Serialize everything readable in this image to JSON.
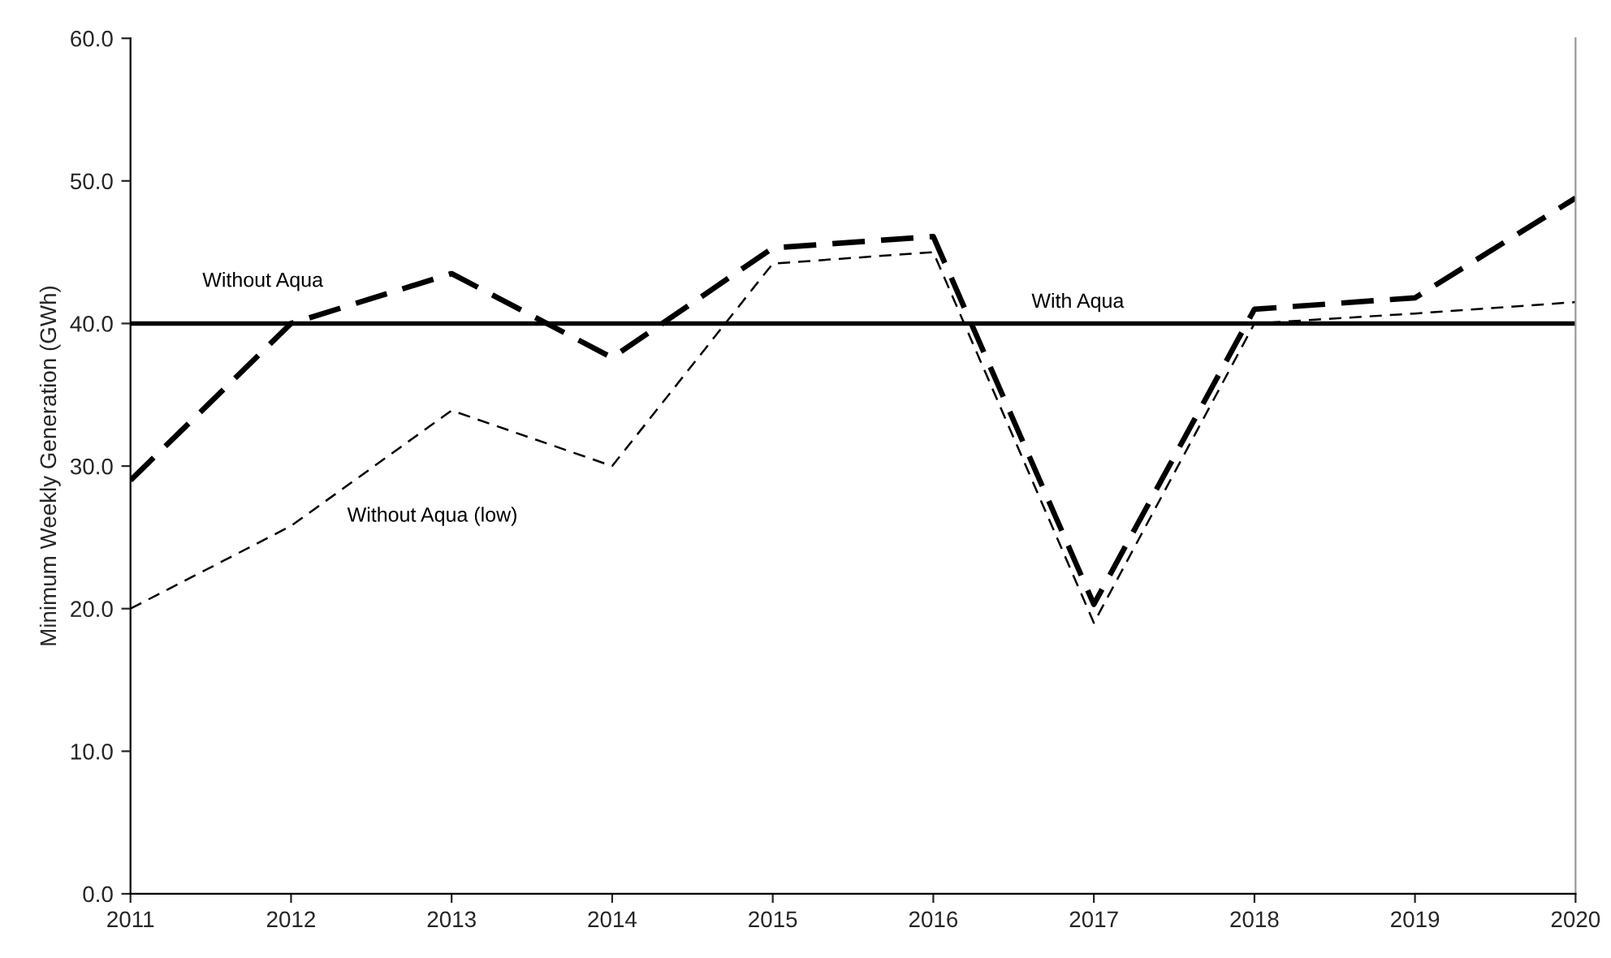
{
  "chart_data": {
    "type": "line",
    "ylabel": "Minimum Weekly Generation (GWh)",
    "x": [
      2011,
      2012,
      2013,
      2014,
      2015,
      2016,
      2017,
      2018,
      2019,
      2020
    ],
    "series": [
      {
        "name": "Without Aqua",
        "color": "#000000",
        "line_style": "dashed",
        "values": [
          29.0,
          40.0,
          43.5,
          37.6,
          45.3,
          46.1,
          20.3,
          41.0,
          41.8,
          48.8
        ]
      },
      {
        "name": "Without Aqua (low)",
        "color": "#000000",
        "line_style": "dashed",
        "values": [
          20.0,
          25.8,
          33.9,
          30.0,
          44.2,
          45.0,
          19.0,
          40.0,
          40.7,
          41.5
        ]
      },
      {
        "name": "With Aqua",
        "color": "#000000",
        "line_style": "solid",
        "values": [
          40.0,
          40.0,
          40.0,
          40.0,
          40.0,
          40.0,
          40.0,
          40.0,
          40.0,
          40.0
        ]
      }
    ],
    "xlim": [
      2011,
      2020
    ],
    "xticks": [
      2011,
      2012,
      2013,
      2014,
      2015,
      2016,
      2017,
      2018,
      2019,
      2020
    ],
    "ylim": [
      0,
      60
    ],
    "yticks": [
      {
        "value": 0,
        "label": "0.0"
      },
      {
        "value": 10,
        "label": "10.0"
      },
      {
        "value": 20,
        "label": "20.0"
      },
      {
        "value": 30,
        "label": "30.0"
      },
      {
        "value": 40,
        "label": "40.0"
      },
      {
        "value": 50,
        "label": "50.0"
      },
      {
        "value": 60,
        "label": "60.0"
      }
    ],
    "grid": false,
    "legend": false,
    "marker": "none"
  }
}
